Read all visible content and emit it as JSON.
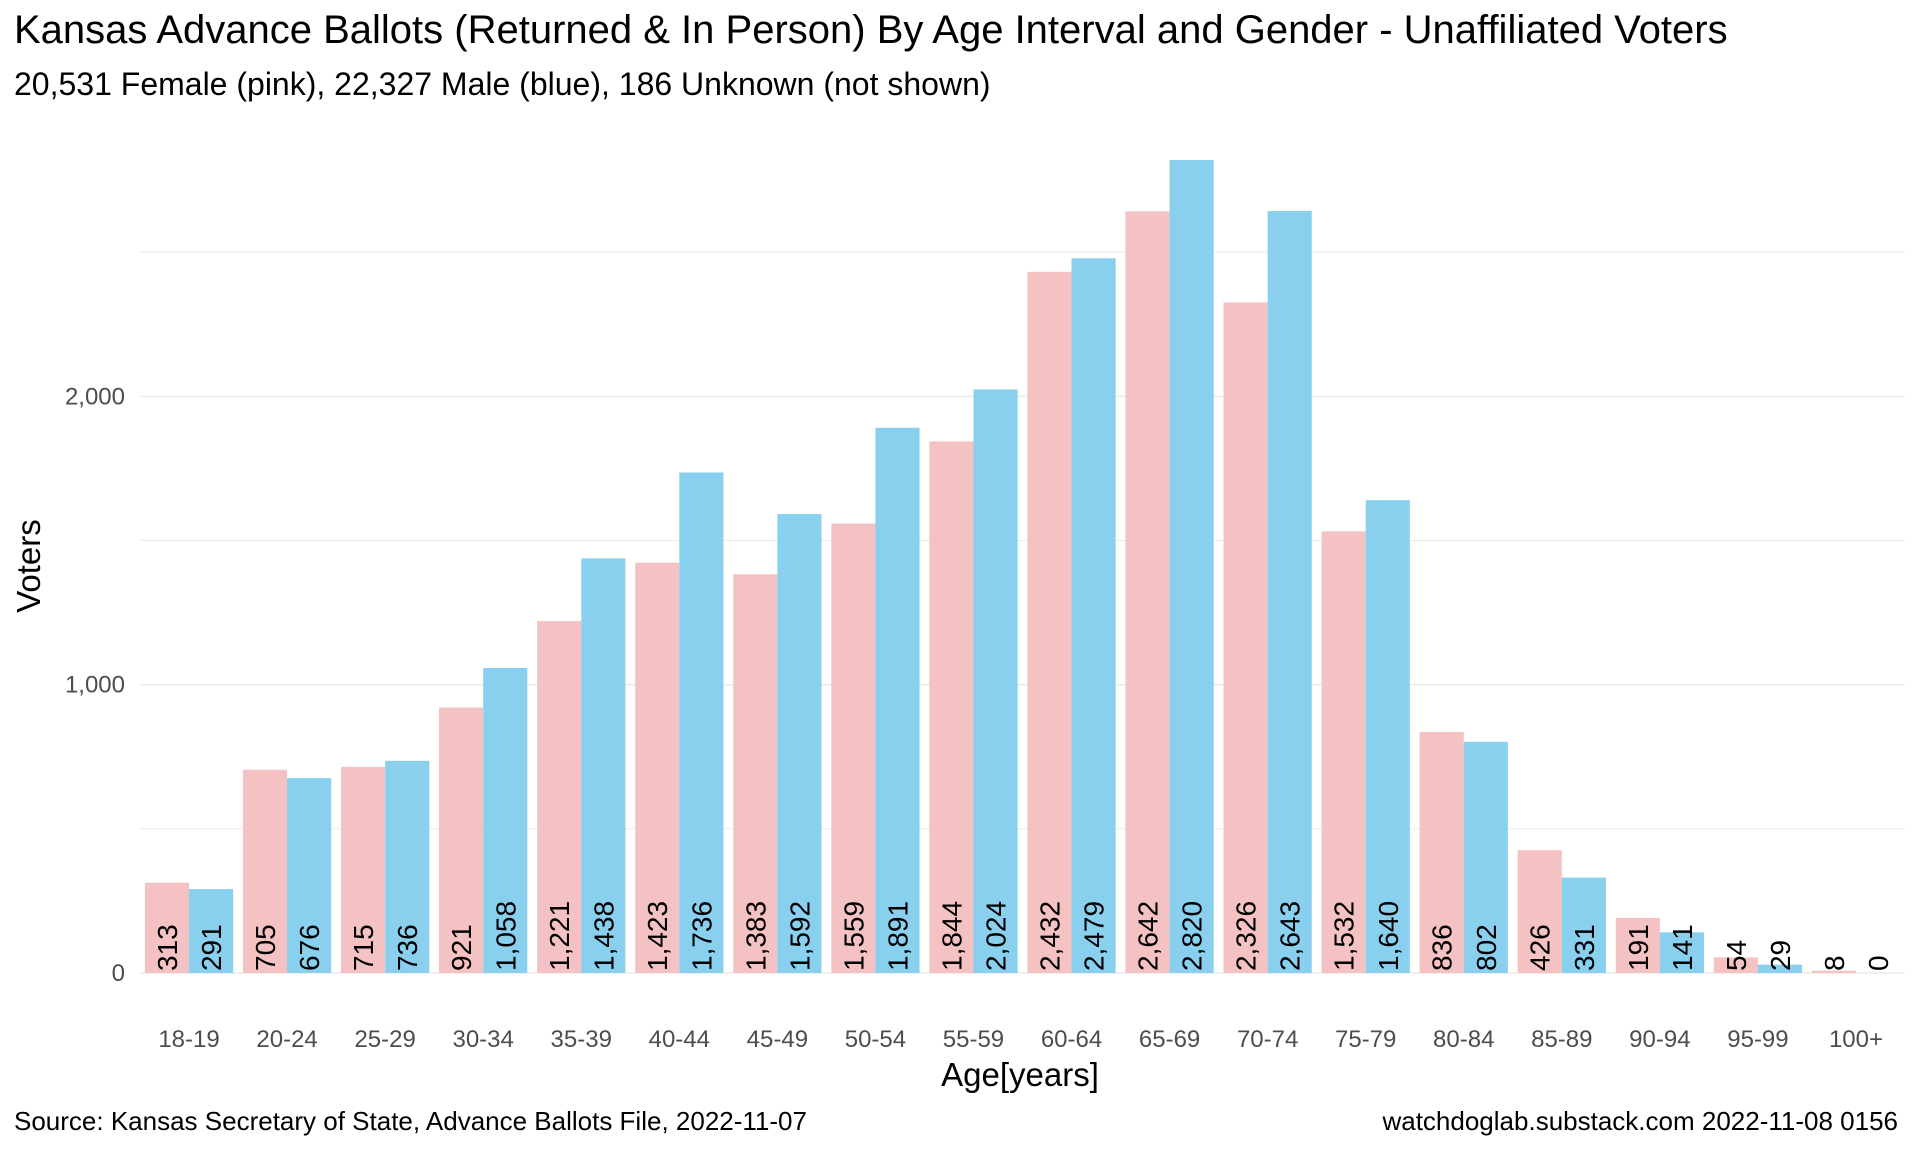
{
  "chart_data": {
    "type": "bar",
    "title": "Kansas Advance Ballots (Returned & In Person) By Age Interval and Gender - Unaffiliated Voters",
    "subtitle": "20,531 Female (pink),  22,327 Male (blue),  186 Unknown (not shown)",
    "xlabel": "Age[years]",
    "ylabel": "Voters",
    "ylim": [
      0,
      2820
    ],
    "yticks": [
      0,
      1000,
      2000
    ],
    "ytick_labels": [
      "0",
      "1,000",
      "2,000"
    ],
    "grid": true,
    "categories": [
      "18-19",
      "20-24",
      "25-29",
      "30-34",
      "35-39",
      "40-44",
      "45-49",
      "50-54",
      "55-59",
      "60-64",
      "65-69",
      "70-74",
      "75-79",
      "80-84",
      "85-89",
      "90-94",
      "95-99",
      "100+"
    ],
    "series": [
      {
        "name": "Female",
        "color": "#f4c2c3",
        "values": [
          313,
          705,
          715,
          921,
          1221,
          1423,
          1383,
          1559,
          1844,
          2432,
          2642,
          2326,
          1532,
          836,
          426,
          191,
          54,
          8
        ],
        "labels": [
          "313",
          "705",
          "715",
          "921",
          "1,221",
          "1,423",
          "1,383",
          "1,559",
          "1,844",
          "2,432",
          "2,642",
          "2,326",
          "1,532",
          "836",
          "426",
          "191",
          "54",
          "8"
        ]
      },
      {
        "name": "Male",
        "color": "#89cfee",
        "values": [
          291,
          676,
          736,
          1058,
          1438,
          1736,
          1592,
          1891,
          2024,
          2479,
          2820,
          2643,
          1640,
          802,
          331,
          141,
          29,
          0
        ],
        "labels": [
          "291",
          "676",
          "736",
          "1,058",
          "1,438",
          "1,736",
          "1,592",
          "1,891",
          "2,024",
          "2,479",
          "2,820",
          "2,643",
          "1,640",
          "802",
          "331",
          "141",
          "29",
          "0"
        ]
      }
    ],
    "caption_left": "Source:  Kansas Secretary of State, Advance Ballots File,  2022-11-07",
    "caption_right": "watchdoglab.substack.com 2022-11-08 0156"
  }
}
